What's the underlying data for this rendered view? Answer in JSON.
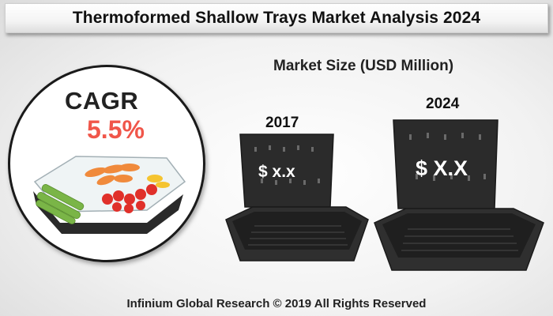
{
  "header": {
    "title": "Thermoformed Shallow Trays Market Analysis 2024"
  },
  "market": {
    "label": "Market Size (USD Million)"
  },
  "cagr": {
    "label": "CAGR",
    "value": "5.5%"
  },
  "bars": [
    {
      "year": "2017",
      "value": "$ x.x"
    },
    {
      "year": "2024",
      "value": "$ X.X"
    }
  ],
  "footer": {
    "text": "Infinium Global Research © 2019 All Rights Reserved"
  },
  "colors": {
    "cagr_value": "#f0564a",
    "tray": "#2b2b2b",
    "background": "#f3f3f3"
  },
  "icons": [
    "food-container-image",
    "black-tray-image"
  ]
}
